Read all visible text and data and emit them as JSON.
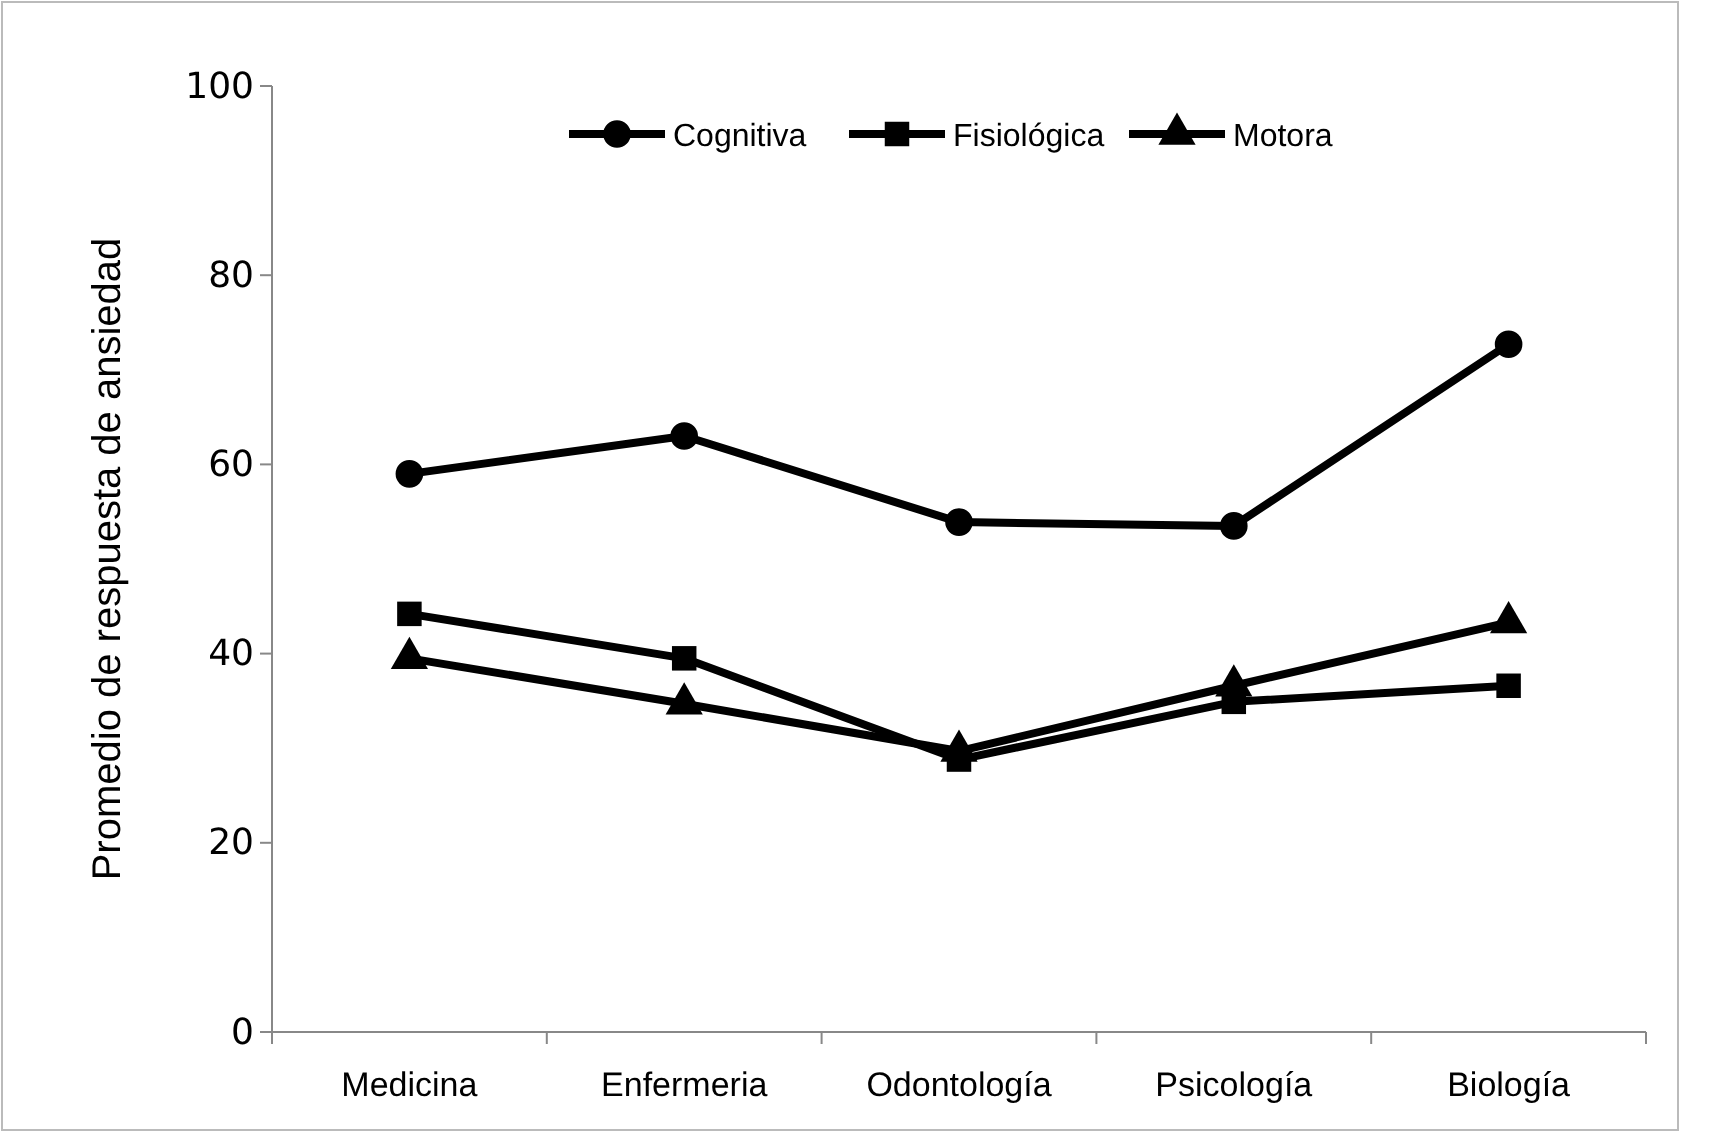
{
  "chart_data": {
    "type": "line",
    "ylabel": "Promedio de respuesta de ansiedad",
    "categories": [
      "Medicina",
      "Enfermeria",
      "Odontología",
      "Psicología",
      "Biología"
    ],
    "series": [
      {
        "name": "Cognitiva",
        "color": "#000000",
        "marker": "circle",
        "values": [
          59.0,
          63.0,
          53.9,
          53.5,
          72.7
        ]
      },
      {
        "name": "Fisiológica",
        "color": "#000000",
        "marker": "square",
        "values": [
          44.2,
          39.5,
          28.8,
          34.9,
          36.6
        ]
      },
      {
        "name": "Motora",
        "color": "#000000",
        "marker": "triangle",
        "values": [
          39.5,
          34.7,
          29.7,
          36.6,
          43.3
        ]
      }
    ],
    "ylim": [
      0,
      100
    ],
    "yticks": [
      0,
      20,
      40,
      60,
      80,
      100
    ],
    "grid": false,
    "legend": "top",
    "line_style": "solid"
  }
}
